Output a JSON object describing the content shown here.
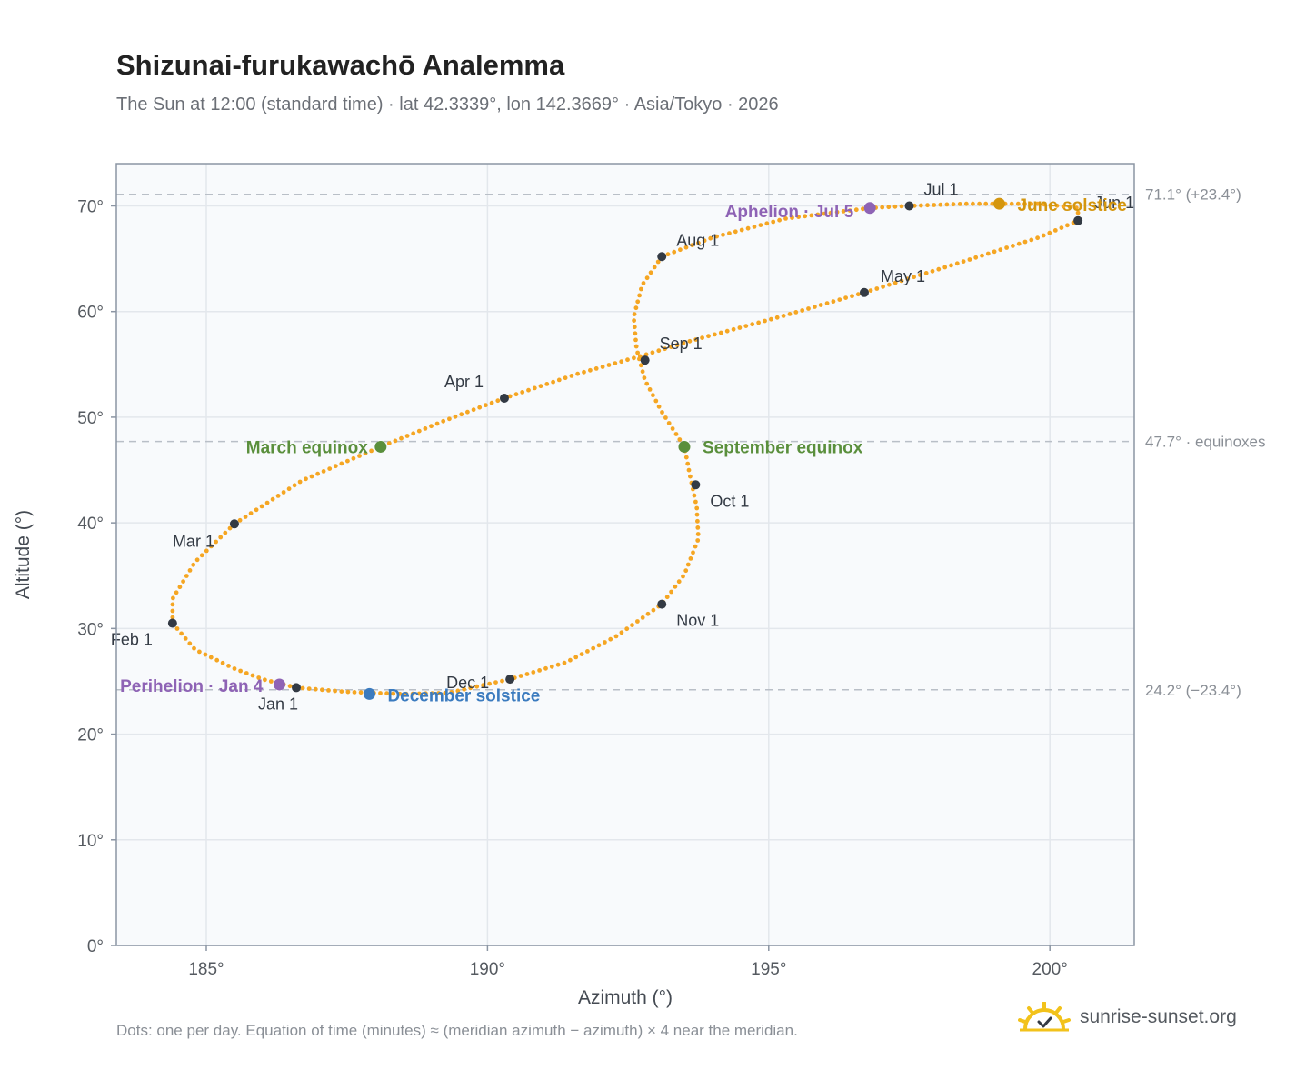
{
  "header": {
    "title": "Shizunai-furukawachō Analemma",
    "subtitle": "The Sun at 12:00 (standard time) · lat 42.3339°, lon 142.3669° · Asia/Tokyo · 2026"
  },
  "footer": {
    "note": "Dots: one per day. Equation of time (minutes) ≈ (meridian azimuth − azimuth) × 4 near the meridian.",
    "brand": "sunrise-sunset.org"
  },
  "colors": {
    "curve": "#f5a623",
    "month_marker": "#333a44",
    "equinox": "#5a8f3c",
    "june_solstice": "#d4960e",
    "december_solstice": "#3b7bbf",
    "apsis": "#8e63b5",
    "plot_bg": "#f8fafc",
    "grid": "#e3e7ec",
    "axis": "#8b95a3",
    "reference_line": "#b9bfc7"
  },
  "chart_data": {
    "type": "scatter",
    "xlabel": "Azimuth (°)",
    "ylabel": "Altitude (°)",
    "xlim": [
      183.4,
      201.5
    ],
    "ylim": [
      0,
      74
    ],
    "xticks": [
      185,
      190,
      195,
      200
    ],
    "yticks": [
      0,
      10,
      20,
      30,
      40,
      50,
      60,
      70
    ],
    "tick_suffix": "°",
    "grid": true,
    "path": [
      [
        186.6,
        24.4
      ],
      [
        187.5,
        24.0
      ],
      [
        188.5,
        23.8
      ],
      [
        189.3,
        23.9
      ],
      [
        190.4,
        25.2
      ],
      [
        191.4,
        26.8
      ],
      [
        192.3,
        29.3
      ],
      [
        193.1,
        32.3
      ],
      [
        193.5,
        35.1
      ],
      [
        193.75,
        38.5
      ],
      [
        193.72,
        41.5
      ],
      [
        193.6,
        44.5
      ],
      [
        193.5,
        47.2
      ],
      [
        193.1,
        50.5
      ],
      [
        192.8,
        53.5
      ],
      [
        192.65,
        56.5
      ],
      [
        192.6,
        59.5
      ],
      [
        192.75,
        62.5
      ],
      [
        193.1,
        65.2
      ],
      [
        194.0,
        67.0
      ],
      [
        195.3,
        68.8
      ],
      [
        196.8,
        69.8
      ],
      [
        197.5,
        70.0
      ],
      [
        198.5,
        70.2
      ],
      [
        199.8,
        70.2
      ],
      [
        200.5,
        69.8
      ],
      [
        200.5,
        68.6
      ],
      [
        199.8,
        67.0
      ],
      [
        198.5,
        64.8
      ],
      [
        196.7,
        61.8
      ],
      [
        195.2,
        59.5
      ],
      [
        193.6,
        57.2
      ],
      [
        192.8,
        55.9
      ],
      [
        191.6,
        54.1
      ],
      [
        190.3,
        51.8
      ],
      [
        189.2,
        49.6
      ],
      [
        188.1,
        47.2
      ],
      [
        186.7,
        44.0
      ],
      [
        185.5,
        39.9
      ],
      [
        184.8,
        36.3
      ],
      [
        184.4,
        32.8
      ],
      [
        184.4,
        30.5
      ],
      [
        184.8,
        28.0
      ],
      [
        185.5,
        26.2
      ],
      [
        186.0,
        25.2
      ],
      [
        186.6,
        24.4
      ]
    ],
    "month_markers": [
      {
        "label": "Jan 1",
        "az": 186.6,
        "alt": 24.4
      },
      {
        "label": "Feb 1",
        "az": 184.4,
        "alt": 30.5
      },
      {
        "label": "Mar 1",
        "az": 185.5,
        "alt": 39.9
      },
      {
        "label": "Apr 1",
        "az": 190.3,
        "alt": 51.8
      },
      {
        "label": "May 1",
        "az": 196.7,
        "alt": 61.8
      },
      {
        "label": "Jun 1",
        "az": 200.5,
        "alt": 68.6
      },
      {
        "label": "Jul 1",
        "az": 197.5,
        "alt": 70.0
      },
      {
        "label": "Aug 1",
        "az": 193.1,
        "alt": 65.2
      },
      {
        "label": "Sep 1",
        "az": 192.8,
        "alt": 55.4
      },
      {
        "label": "Oct 1",
        "az": 193.7,
        "alt": 43.6
      },
      {
        "label": "Nov 1",
        "az": 193.1,
        "alt": 32.3
      },
      {
        "label": "Dec 1",
        "az": 190.4,
        "alt": 25.2
      }
    ],
    "events": [
      {
        "label": "March equinox",
        "az": 188.1,
        "alt": 47.2,
        "kind": "equinox"
      },
      {
        "label": "September equinox",
        "az": 193.5,
        "alt": 47.2,
        "kind": "equinox"
      },
      {
        "label": "June solstice",
        "az": 199.1,
        "alt": 70.2,
        "kind": "june_solstice"
      },
      {
        "label": "December solstice",
        "az": 187.9,
        "alt": 23.8,
        "kind": "december_solstice"
      },
      {
        "label": "Aphelion · Jul 5",
        "az": 196.8,
        "alt": 69.8,
        "kind": "apsis"
      },
      {
        "label": "Perihelion · Jan 4",
        "az": 186.3,
        "alt": 24.7,
        "kind": "apsis"
      }
    ],
    "reference_lines": [
      {
        "value": 71.1,
        "label": "71.1° (+23.4°)"
      },
      {
        "value": 47.7,
        "label": "47.7° · equinoxes"
      },
      {
        "value": 24.2,
        "label": "24.2° (−23.4°)"
      }
    ]
  }
}
